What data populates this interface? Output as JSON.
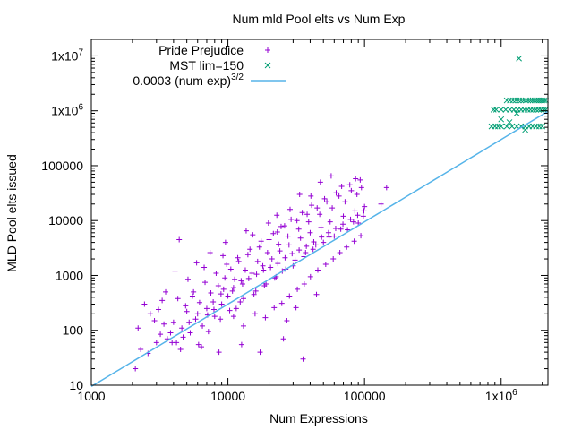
{
  "chart_data": {
    "type": "scatter",
    "title": "Num mld Pool elts vs Num Exp",
    "xlabel": "Num Expressions",
    "ylabel": "MLD Pool elts issued",
    "xscale": "log",
    "yscale": "log",
    "xlim": [
      1000,
      2200000
    ],
    "ylim": [
      10,
      20000000
    ],
    "grid": false,
    "legend_position": "top-right",
    "x_ticks": [
      {
        "value": 1000,
        "label": "1000"
      },
      {
        "value": 10000,
        "label": "10000"
      },
      {
        "value": 100000,
        "label": "100000"
      },
      {
        "value": 1000000,
        "label": "1x10",
        "sup": "6"
      }
    ],
    "y_ticks": [
      {
        "value": 10,
        "label": "10"
      },
      {
        "value": 100,
        "label": "100"
      },
      {
        "value": 1000,
        "label": "1000"
      },
      {
        "value": 10000,
        "label": "10000"
      },
      {
        "value": 100000,
        "label": "100000"
      },
      {
        "value": 1000000,
        "label": "1x10",
        "sup": "6"
      },
      {
        "value": 10000000,
        "label": "1x10",
        "sup": "7"
      }
    ],
    "series": [
      {
        "name": "Pride Prejudice",
        "marker": "plus",
        "color": "#9400d3",
        "points": [
          [
            2100,
            20
          ],
          [
            2300,
            45
          ],
          [
            2600,
            38
          ],
          [
            3000,
            60
          ],
          [
            3200,
            85
          ],
          [
            3600,
            70
          ],
          [
            4000,
            140
          ],
          [
            4200,
            60
          ],
          [
            4600,
            110
          ],
          [
            5000,
            220
          ],
          [
            5300,
            90
          ],
          [
            5800,
            160
          ],
          [
            6200,
            320
          ],
          [
            6500,
            120
          ],
          [
            7000,
            250
          ],
          [
            7500,
            480
          ],
          [
            8000,
            180
          ],
          [
            8500,
            650
          ],
          [
            9000,
            300
          ],
          [
            9500,
            900
          ],
          [
            10000,
            420
          ],
          [
            10500,
            1300
          ],
          [
            11000,
            600
          ],
          [
            11500,
            250
          ],
          [
            12000,
            1800
          ],
          [
            12500,
            800
          ],
          [
            13000,
            380
          ],
          [
            14000,
            2400
          ],
          [
            15000,
            1100
          ],
          [
            16000,
            520
          ],
          [
            17000,
            3300
          ],
          [
            18000,
            1500
          ],
          [
            19000,
            700
          ],
          [
            20000,
            4500
          ],
          [
            21000,
            2000
          ],
          [
            22000,
            900
          ],
          [
            23000,
            6200
          ],
          [
            24000,
            2800
          ],
          [
            25000,
            1200
          ],
          [
            26000,
            8000
          ],
          [
            28000,
            3600
          ],
          [
            30000,
            1500
          ],
          [
            32000,
            10000
          ],
          [
            34000,
            4800
          ],
          [
            36000,
            2200
          ],
          [
            38000,
            13000
          ],
          [
            40000,
            6000
          ],
          [
            42000,
            3000
          ],
          [
            45000,
            17000
          ],
          [
            48000,
            7500
          ],
          [
            50000,
            4000
          ],
          [
            53000,
            22000
          ],
          [
            56000,
            9500
          ],
          [
            60000,
            5200
          ],
          [
            65000,
            28000
          ],
          [
            70000,
            12000
          ],
          [
            75000,
            6800
          ],
          [
            80000,
            35000
          ],
          [
            85000,
            15000
          ],
          [
            90000,
            9000
          ],
          [
            95000,
            40000
          ],
          [
            100000,
            18000
          ],
          [
            3100,
            240
          ],
          [
            3400,
            130
          ],
          [
            3800,
            90
          ],
          [
            4300,
            380
          ],
          [
            4700,
            75
          ],
          [
            5200,
            140
          ],
          [
            5600,
            500
          ],
          [
            6000,
            200
          ],
          [
            6800,
            750
          ],
          [
            7200,
            95
          ],
          [
            7800,
            330
          ],
          [
            8200,
            1100
          ],
          [
            8800,
            160
          ],
          [
            9300,
            560
          ],
          [
            9800,
            1600
          ],
          [
            10300,
            230
          ],
          [
            11200,
            850
          ],
          [
            11800,
            2100
          ],
          [
            12300,
            330
          ],
          [
            13400,
            1250
          ],
          [
            14500,
            3000
          ],
          [
            15500,
            450
          ],
          [
            16500,
            1800
          ],
          [
            17500,
            4200
          ],
          [
            18500,
            650
          ],
          [
            19500,
            2600
          ],
          [
            21500,
            5800
          ],
          [
            22500,
            950
          ],
          [
            23500,
            3700
          ],
          [
            24500,
            7800
          ],
          [
            26500,
            1300
          ],
          [
            27500,
            5200
          ],
          [
            29000,
            10500
          ],
          [
            31000,
            1900
          ],
          [
            33000,
            7000
          ],
          [
            35000,
            14000
          ],
          [
            37000,
            2600
          ],
          [
            39000,
            9500
          ],
          [
            41000,
            19000
          ],
          [
            44000,
            3600
          ],
          [
            47000,
            13000
          ],
          [
            51000,
            25000
          ],
          [
            55000,
            5000
          ],
          [
            58000,
            17000
          ],
          [
            62000,
            32000
          ],
          [
            67000,
            7000
          ],
          [
            72000,
            22000
          ],
          [
            78000,
            45000
          ],
          [
            83000,
            9500
          ],
          [
            88000,
            30000
          ],
          [
            93000,
            55000
          ],
          [
            98000,
            12000
          ],
          [
            4500,
            45
          ],
          [
            6400,
            50
          ],
          [
            8600,
            40
          ],
          [
            12600,
            55
          ],
          [
            17200,
            40
          ],
          [
            25500,
            70
          ],
          [
            35500,
            30
          ],
          [
            27000,
            150
          ],
          [
            31500,
            260
          ],
          [
            44500,
            450
          ],
          [
            4100,
            1200
          ],
          [
            5900,
            1700
          ],
          [
            7400,
            2600
          ],
          [
            9600,
            4000
          ],
          [
            13600,
            6500
          ],
          [
            19800,
            9000
          ],
          [
            28500,
            16000
          ],
          [
            40500,
            28000
          ],
          [
            145000,
            40000
          ],
          [
            132000,
            20000
          ],
          [
            2450,
            300
          ],
          [
            2900,
            150
          ],
          [
            3500,
            500
          ],
          [
            4400,
            4500
          ],
          [
            5100,
            850
          ],
          [
            6700,
            1400
          ],
          [
            9200,
            2300
          ],
          [
            15200,
            5500
          ],
          [
            22800,
            12500
          ],
          [
            33500,
            30000
          ],
          [
            47500,
            50000
          ],
          [
            68000,
            42000
          ],
          [
            86000,
            58000
          ],
          [
            57000,
            65000
          ],
          [
            2200,
            110
          ],
          [
            2700,
            200
          ],
          [
            3300,
            350
          ],
          [
            3900,
            60
          ],
          [
            4900,
            280
          ],
          [
            5500,
            420
          ],
          [
            6100,
            55
          ],
          [
            7100,
            190
          ],
          [
            7900,
            240
          ],
          [
            8900,
            460
          ],
          [
            10800,
            520
          ],
          [
            12800,
            700
          ],
          [
            14200,
            880
          ],
          [
            16200,
            1050
          ],
          [
            18200,
            1250
          ],
          [
            20500,
            1400
          ],
          [
            23200,
            1650
          ],
          [
            26200,
            2100
          ],
          [
            29500,
            2500
          ],
          [
            33200,
            2900
          ],
          [
            37500,
            3400
          ],
          [
            42500,
            4100
          ],
          [
            48500,
            5000
          ],
          [
            54500,
            6000
          ],
          [
            61500,
            7200
          ],
          [
            69500,
            8600
          ],
          [
            79000,
            10500
          ],
          [
            89000,
            12500
          ],
          [
            99000,
            15000
          ],
          [
            11000,
            180
          ],
          [
            13000,
            120
          ],
          [
            15800,
            200
          ],
          [
            18800,
            170
          ],
          [
            21800,
            260
          ],
          [
            24800,
            310
          ],
          [
            28200,
            420
          ],
          [
            32200,
            560
          ],
          [
            36200,
            700
          ],
          [
            40200,
            950
          ],
          [
            45500,
            1250
          ],
          [
            52000,
            1600
          ],
          [
            59000,
            2000
          ],
          [
            66000,
            2600
          ],
          [
            74000,
            3300
          ],
          [
            84000,
            4200
          ],
          [
            94000,
            5300
          ]
        ]
      },
      {
        "name": "MST lim=150",
        "marker": "x",
        "color": "#009e73",
        "points": [
          [
            850000,
            520000
          ],
          [
            900000,
            520000
          ],
          [
            950000,
            520000
          ],
          [
            1000000,
            520000
          ],
          [
            1100000,
            520000
          ],
          [
            1200000,
            520000
          ],
          [
            1300000,
            520000
          ],
          [
            1400000,
            520000
          ],
          [
            1500000,
            520000
          ],
          [
            1600000,
            520000
          ],
          [
            1700000,
            520000
          ],
          [
            1800000,
            520000
          ],
          [
            1900000,
            520000
          ],
          [
            2000000,
            520000
          ],
          [
            880000,
            1050000
          ],
          [
            920000,
            1050000
          ],
          [
            1000000,
            1050000
          ],
          [
            1080000,
            1050000
          ],
          [
            1160000,
            1050000
          ],
          [
            1240000,
            1050000
          ],
          [
            1320000,
            1050000
          ],
          [
            1400000,
            1050000
          ],
          [
            1480000,
            1050000
          ],
          [
            1560000,
            1050000
          ],
          [
            1640000,
            1050000
          ],
          [
            1720000,
            1050000
          ],
          [
            1800000,
            1050000
          ],
          [
            1880000,
            1050000
          ],
          [
            1960000,
            1050000
          ],
          [
            2050000,
            1050000
          ],
          [
            2120000,
            1050000
          ],
          [
            1100000,
            1550000
          ],
          [
            1160000,
            1550000
          ],
          [
            1220000,
            1550000
          ],
          [
            1280000,
            1550000
          ],
          [
            1340000,
            1550000
          ],
          [
            1400000,
            1550000
          ],
          [
            1460000,
            1550000
          ],
          [
            1520000,
            1550000
          ],
          [
            1580000,
            1550000
          ],
          [
            1640000,
            1550000
          ],
          [
            1700000,
            1550000
          ],
          [
            1760000,
            1550000
          ],
          [
            1820000,
            1550000
          ],
          [
            1880000,
            1550000
          ],
          [
            1940000,
            1550000
          ],
          [
            2000000,
            1550000
          ],
          [
            2060000,
            1550000
          ],
          [
            2120000,
            1550000
          ],
          [
            1000000,
            700000
          ],
          [
            1150000,
            620000
          ],
          [
            1300000,
            900000
          ],
          [
            1500000,
            450000
          ],
          [
            1350000,
            9000000
          ]
        ]
      },
      {
        "name": "0.0003 (num exp)",
        "name_sup": "3/2",
        "marker": "line",
        "color": "#56b4e9",
        "coefficient": 0.0003,
        "exponent": 1.5,
        "x_range": [
          1000,
          2200000
        ]
      }
    ]
  }
}
